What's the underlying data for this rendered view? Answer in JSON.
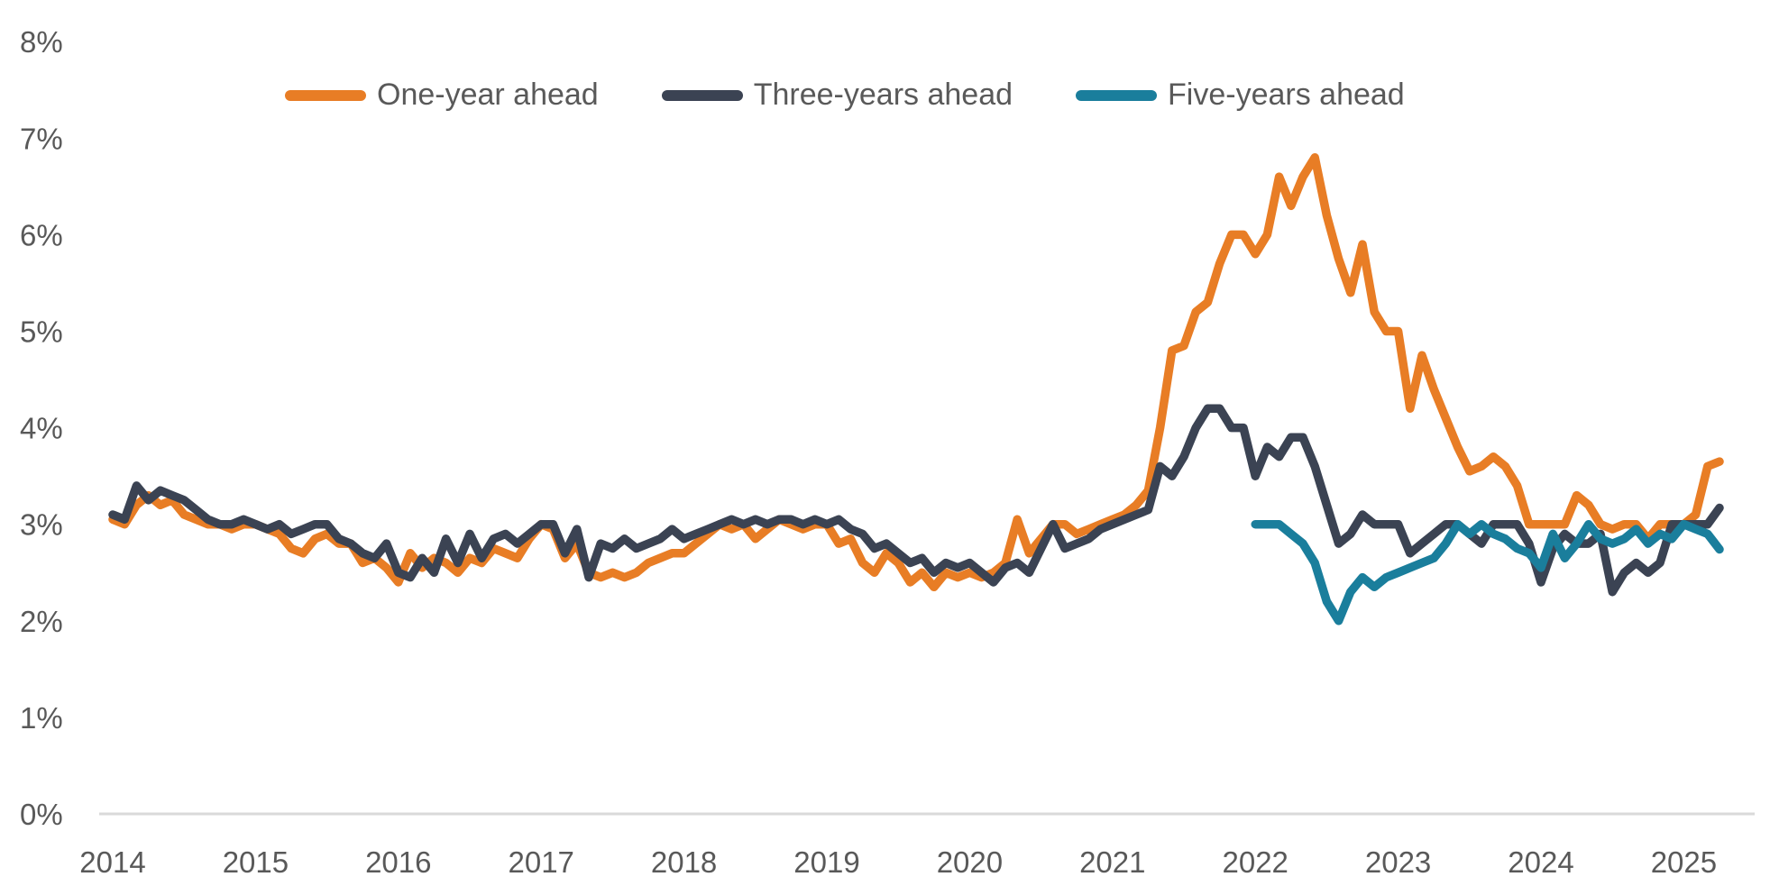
{
  "chart_data": {
    "type": "line",
    "title": "",
    "xlabel": "",
    "ylabel": "",
    "ylim": [
      0,
      8
    ],
    "y_tick_step_pct": 1,
    "y_tick_labels": [
      "0%",
      "1%",
      "2%",
      "3%",
      "4%",
      "5%",
      "6%",
      "7%",
      "8%"
    ],
    "x_tick_labels": [
      "2014",
      "2015",
      "2016",
      "2017",
      "2018",
      "2019",
      "2020",
      "2021",
      "2022",
      "2023",
      "2024",
      "2025"
    ],
    "x_start_year": 2014,
    "points_per_year": 12,
    "grid": false,
    "legend_position": "top",
    "axis_line_color": "#d9d9d9",
    "tick_text_color": "#595959",
    "series": [
      {
        "name": "One-year ahead",
        "color": "#e87d25",
        "start_year": 2014,
        "start_month": 1,
        "values": [
          3.05,
          3.0,
          3.2,
          3.3,
          3.2,
          3.25,
          3.1,
          3.05,
          3.0,
          3.0,
          2.95,
          3.0,
          3.0,
          2.95,
          2.9,
          2.75,
          2.7,
          2.85,
          2.9,
          2.8,
          2.8,
          2.6,
          2.65,
          2.55,
          2.4,
          2.7,
          2.55,
          2.65,
          2.6,
          2.5,
          2.65,
          2.6,
          2.75,
          2.7,
          2.65,
          2.85,
          3.0,
          2.95,
          2.65,
          2.8,
          2.5,
          2.45,
          2.5,
          2.45,
          2.5,
          2.6,
          2.65,
          2.7,
          2.7,
          2.8,
          2.9,
          3.0,
          2.95,
          3.0,
          2.85,
          2.95,
          3.05,
          3.0,
          2.95,
          3.0,
          3.0,
          2.8,
          2.85,
          2.6,
          2.5,
          2.7,
          2.6,
          2.4,
          2.5,
          2.35,
          2.5,
          2.45,
          2.5,
          2.45,
          2.5,
          2.6,
          3.05,
          2.7,
          2.85,
          3.0,
          3.0,
          2.9,
          2.95,
          3.0,
          3.05,
          3.1,
          3.2,
          3.35,
          4.0,
          4.8,
          4.85,
          5.2,
          5.3,
          5.7,
          6.0,
          6.0,
          5.8,
          6.0,
          6.6,
          6.3,
          6.6,
          6.8,
          6.2,
          5.75,
          5.4,
          5.9,
          5.2,
          5.0,
          5.0,
          4.2,
          4.75,
          4.4,
          4.1,
          3.8,
          3.55,
          3.6,
          3.7,
          3.6,
          3.4,
          3.0,
          3.0,
          3.0,
          3.0,
          3.3,
          3.2,
          3.0,
          2.95,
          3.0,
          3.0,
          2.85,
          3.0,
          3.0,
          3.0,
          3.1,
          3.6,
          3.65
        ]
      },
      {
        "name": "Three-years ahead",
        "color": "#3b4353",
        "start_year": 2014,
        "start_month": 1,
        "values": [
          3.1,
          3.05,
          3.4,
          3.25,
          3.35,
          3.3,
          3.25,
          3.15,
          3.05,
          3.0,
          3.0,
          3.05,
          3.0,
          2.95,
          3.0,
          2.9,
          2.95,
          3.0,
          3.0,
          2.85,
          2.8,
          2.7,
          2.65,
          2.8,
          2.5,
          2.45,
          2.65,
          2.5,
          2.85,
          2.6,
          2.9,
          2.65,
          2.85,
          2.9,
          2.8,
          2.9,
          3.0,
          3.0,
          2.7,
          2.95,
          2.45,
          2.8,
          2.75,
          2.85,
          2.75,
          2.8,
          2.85,
          2.95,
          2.85,
          2.9,
          2.95,
          3.0,
          3.05,
          3.0,
          3.05,
          3.0,
          3.05,
          3.05,
          3.0,
          3.05,
          3.0,
          3.05,
          2.95,
          2.9,
          2.75,
          2.8,
          2.7,
          2.6,
          2.65,
          2.5,
          2.6,
          2.55,
          2.6,
          2.5,
          2.4,
          2.55,
          2.6,
          2.5,
          2.75,
          3.0,
          2.75,
          2.8,
          2.85,
          2.95,
          3.0,
          3.05,
          3.1,
          3.15,
          3.6,
          3.5,
          3.7,
          4.0,
          4.2,
          4.2,
          4.0,
          4.0,
          3.5,
          3.8,
          3.7,
          3.9,
          3.9,
          3.6,
          3.2,
          2.8,
          2.9,
          3.1,
          3.0,
          3.0,
          3.0,
          2.7,
          2.8,
          2.9,
          3.0,
          3.0,
          2.9,
          2.8,
          3.0,
          3.0,
          3.0,
          2.8,
          2.4,
          2.75,
          2.9,
          2.8,
          2.8,
          2.9,
          2.3,
          2.5,
          2.6,
          2.5,
          2.6,
          3.0,
          3.0,
          3.0,
          3.0,
          3.17
        ]
      },
      {
        "name": "Five-years ahead",
        "color": "#1a7e9c",
        "start_year": 2022,
        "start_month": 1,
        "values": [
          3.0,
          3.0,
          3.0,
          2.9,
          2.8,
          2.6,
          2.2,
          2.0,
          2.3,
          2.45,
          2.35,
          2.45,
          2.5,
          2.55,
          2.6,
          2.65,
          2.8,
          3.0,
          2.9,
          3.0,
          2.9,
          2.85,
          2.75,
          2.7,
          2.55,
          2.9,
          2.65,
          2.8,
          3.0,
          2.85,
          2.8,
          2.85,
          2.95,
          2.8,
          2.9,
          2.85,
          3.0,
          2.95,
          2.9,
          2.74
        ]
      }
    ]
  }
}
